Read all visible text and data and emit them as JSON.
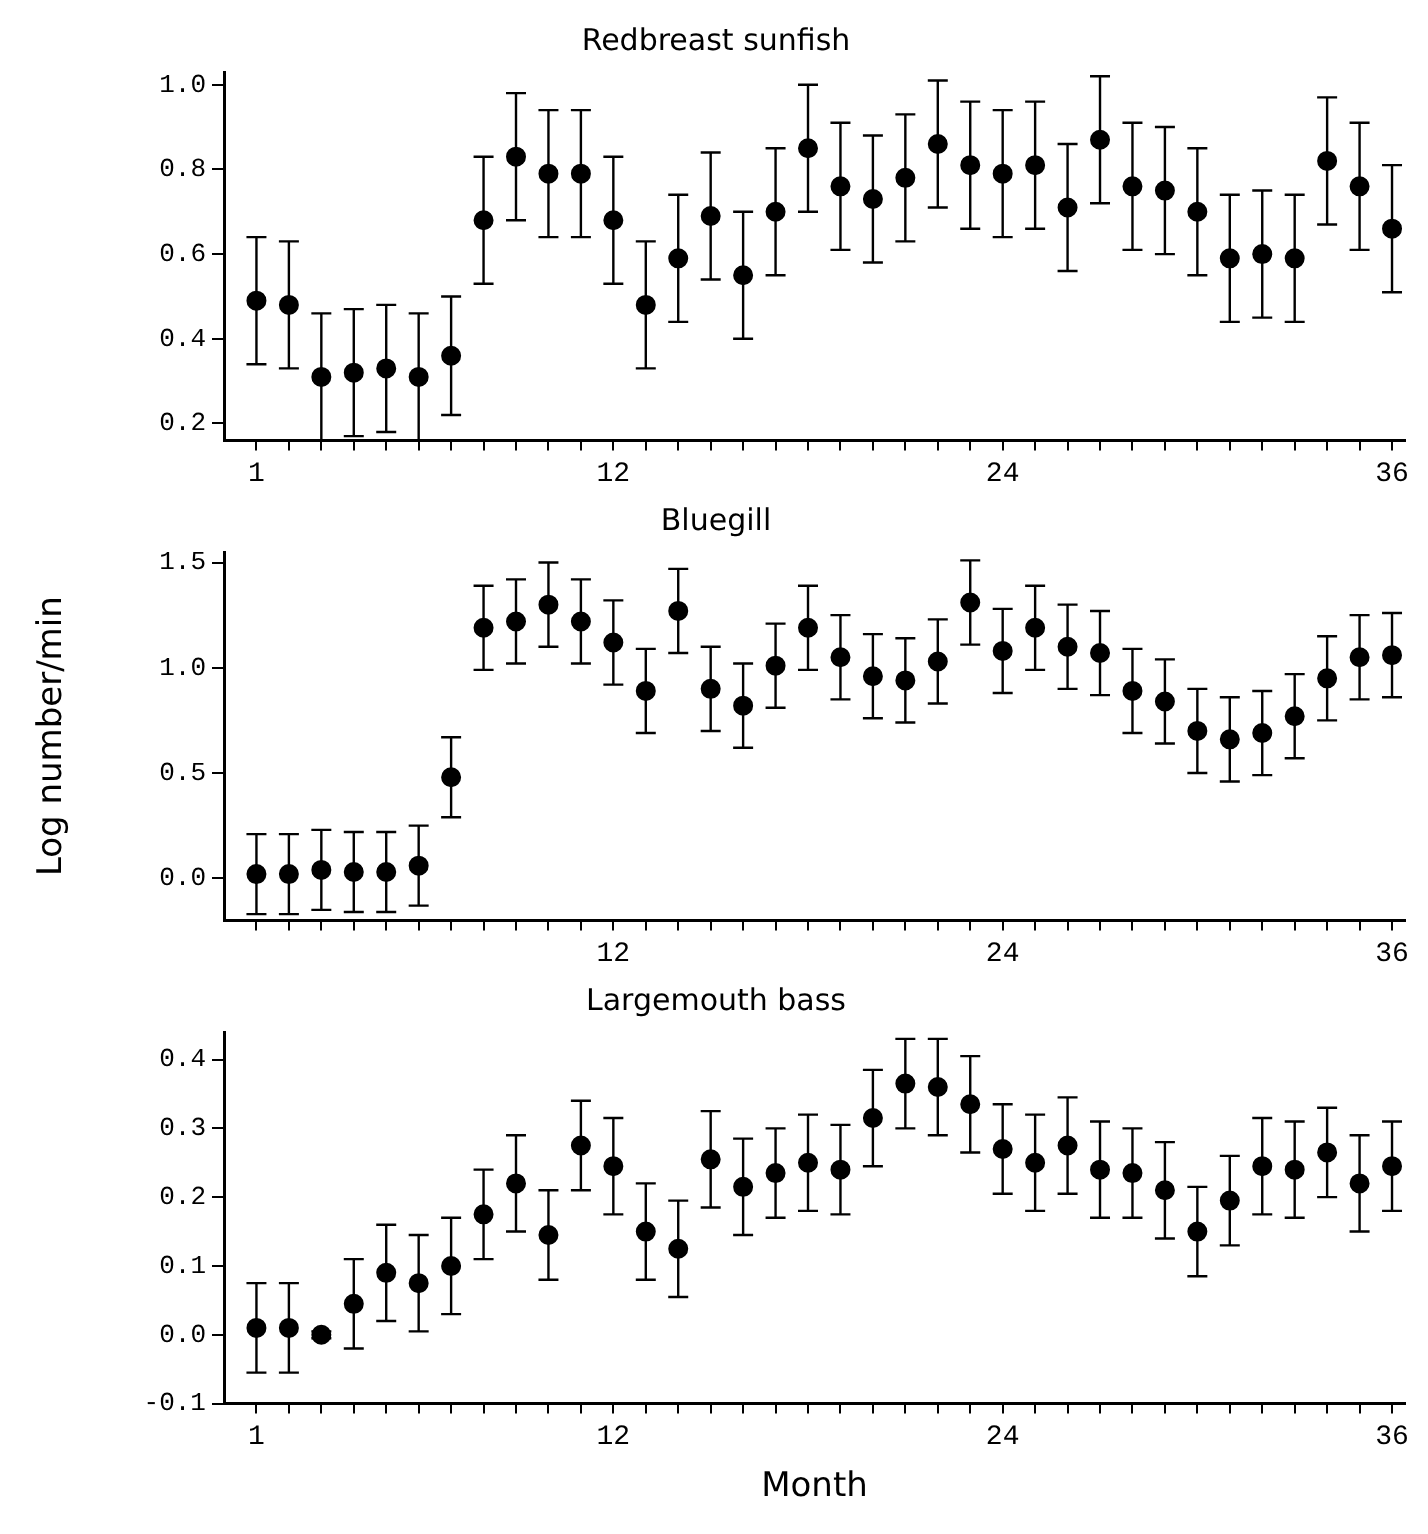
{
  "chart_data": [
    {
      "type": "scatter",
      "title": "Redbreast sunfish",
      "marker": "circle",
      "grid": false,
      "xlim": [
        0,
        36.4
      ],
      "ylim": [
        0.16,
        1.03
      ],
      "yticks": [
        {
          "value": 0.2,
          "label": "0.2"
        },
        {
          "value": 0.4,
          "label": "0.4"
        },
        {
          "value": 0.6,
          "label": "0.6"
        },
        {
          "value": 0.8,
          "label": "0.8"
        },
        {
          "value": 1,
          "label": "1.0"
        }
      ],
      "xticks": [
        1,
        {
          "value": 2,
          "label": null
        },
        {
          "value": 3,
          "label": null
        },
        {
          "value": 4,
          "label": null
        },
        {
          "value": 5,
          "label": null
        },
        {
          "value": 6,
          "label": null
        },
        {
          "value": 7,
          "label": null
        },
        {
          "value": 8,
          "label": null
        },
        {
          "value": 9,
          "label": null
        },
        {
          "value": 10,
          "label": null
        },
        {
          "value": 11,
          "label": null
        },
        12,
        {
          "value": 13,
          "label": null
        },
        {
          "value": 14,
          "label": null
        },
        {
          "value": 15,
          "label": null
        },
        {
          "value": 16,
          "label": null
        },
        {
          "value": 17,
          "label": null
        },
        {
          "value": 18,
          "label": null
        },
        {
          "value": 19,
          "label": null
        },
        {
          "value": 20,
          "label": null
        },
        {
          "value": 21,
          "label": null
        },
        {
          "value": 22,
          "label": null
        },
        {
          "value": 23,
          "label": null
        },
        24,
        {
          "value": 25,
          "label": null
        },
        {
          "value": 26,
          "label": null
        },
        {
          "value": 27,
          "label": null
        },
        {
          "value": 28,
          "label": null
        },
        {
          "value": 29,
          "label": null
        },
        {
          "value": 30,
          "label": null
        },
        {
          "value": 31,
          "label": null
        },
        {
          "value": 32,
          "label": null
        },
        {
          "value": 33,
          "label": null
        },
        {
          "value": 34,
          "label": null
        },
        {
          "value": 35,
          "label": null
        },
        36
      ],
      "x": [
        1,
        2,
        3,
        4,
        5,
        6,
        7,
        8,
        9,
        10,
        11,
        12,
        13,
        14,
        15,
        16,
        17,
        18,
        19,
        20,
        21,
        22,
        23,
        24,
        25,
        26,
        27,
        28,
        29,
        30,
        31,
        32,
        33,
        34,
        35,
        36
      ],
      "series": [
        {
          "color": "#000000",
          "values": [
            0.49,
            0.48,
            0.31,
            0.32,
            0.33,
            0.31,
            0.36,
            0.68,
            0.83,
            0.79,
            0.79,
            0.68,
            0.48,
            0.59,
            0.69,
            0.55,
            0.7,
            0.85,
            0.76,
            0.73,
            0.78,
            0.86,
            0.81,
            0.79,
            0.81,
            0.71,
            0.87,
            0.76,
            0.75,
            0.7,
            0.59,
            0.6,
            0.59,
            0.82,
            0.76,
            0.66
          ],
          "errors": [
            0.15,
            0.15,
            0.15,
            0.15,
            0.15,
            0.15,
            0.14,
            0.15,
            0.15,
            0.15,
            0.15,
            0.15,
            0.15,
            0.15,
            0.15,
            0.15,
            0.15,
            0.15,
            0.15,
            0.15,
            0.15,
            0.15,
            0.15,
            0.15,
            0.15,
            0.15,
            0.15,
            0.15,
            0.15,
            0.15,
            0.15,
            0.15,
            0.15,
            0.15,
            0.15,
            0.15
          ]
        }
      ]
    },
    {
      "type": "scatter",
      "title": "Bluegill",
      "ylabel": "Log number/min",
      "marker": "circle",
      "grid": false,
      "xlim": [
        0,
        36.4
      ],
      "ylim": [
        -0.2,
        1.55
      ],
      "yticks": [
        {
          "value": 0,
          "label": "0.0"
        },
        {
          "value": 0.5,
          "label": "0.5"
        },
        {
          "value": 1,
          "label": "1.0"
        },
        {
          "value": 1.5,
          "label": "1.5"
        }
      ],
      "xticks": [
        {
          "value": 1,
          "label": null
        },
        {
          "value": 2,
          "label": null
        },
        {
          "value": 3,
          "label": null
        },
        {
          "value": 4,
          "label": null
        },
        {
          "value": 5,
          "label": null
        },
        {
          "value": 6,
          "label": null
        },
        {
          "value": 7,
          "label": null
        },
        {
          "value": 8,
          "label": null
        },
        {
          "value": 9,
          "label": null
        },
        {
          "value": 10,
          "label": null
        },
        {
          "value": 11,
          "label": null
        },
        12,
        {
          "value": 13,
          "label": null
        },
        {
          "value": 14,
          "label": null
        },
        {
          "value": 15,
          "label": null
        },
        {
          "value": 16,
          "label": null
        },
        {
          "value": 17,
          "label": null
        },
        {
          "value": 18,
          "label": null
        },
        {
          "value": 19,
          "label": null
        },
        {
          "value": 20,
          "label": null
        },
        {
          "value": 21,
          "label": null
        },
        {
          "value": 22,
          "label": null
        },
        {
          "value": 23,
          "label": null
        },
        24,
        {
          "value": 25,
          "label": null
        },
        {
          "value": 26,
          "label": null
        },
        {
          "value": 27,
          "label": null
        },
        {
          "value": 28,
          "label": null
        },
        {
          "value": 29,
          "label": null
        },
        {
          "value": 30,
          "label": null
        },
        {
          "value": 31,
          "label": null
        },
        {
          "value": 32,
          "label": null
        },
        {
          "value": 33,
          "label": null
        },
        {
          "value": 34,
          "label": null
        },
        {
          "value": 35,
          "label": null
        },
        36
      ],
      "x": [
        1,
        2,
        3,
        4,
        5,
        6,
        7,
        8,
        9,
        10,
        11,
        12,
        13,
        14,
        15,
        16,
        17,
        18,
        19,
        20,
        21,
        22,
        23,
        24,
        25,
        26,
        27,
        28,
        29,
        30,
        31,
        32,
        33,
        34,
        35,
        36
      ],
      "series": [
        {
          "color": "#000000",
          "values": [
            0.02,
            0.02,
            0.04,
            0.03,
            0.03,
            0.06,
            0.48,
            1.19,
            1.22,
            1.3,
            1.22,
            1.12,
            0.89,
            1.27,
            0.9,
            0.82,
            1.01,
            1.19,
            1.05,
            0.96,
            0.94,
            1.03,
            1.31,
            1.08,
            1.19,
            1.1,
            1.07,
            0.89,
            0.84,
            0.7,
            0.66,
            0.69,
            0.77,
            0.95,
            1.05,
            1.06
          ],
          "errors": [
            0.19,
            0.19,
            0.19,
            0.19,
            0.19,
            0.19,
            0.19,
            0.2,
            0.2,
            0.2,
            0.2,
            0.2,
            0.2,
            0.2,
            0.2,
            0.2,
            0.2,
            0.2,
            0.2,
            0.2,
            0.2,
            0.2,
            0.2,
            0.2,
            0.2,
            0.2,
            0.2,
            0.2,
            0.2,
            0.2,
            0.2,
            0.2,
            0.2,
            0.2,
            0.2,
            0.2
          ]
        }
      ]
    },
    {
      "type": "scatter",
      "title": "Largemouth bass",
      "xlabel": "Month",
      "marker": "circle",
      "grid": false,
      "xlim": [
        0,
        36.4
      ],
      "ylim": [
        -0.1,
        0.44
      ],
      "yticks": [
        {
          "value": -0.1,
          "label": "-0.1"
        },
        {
          "value": 0,
          "label": "0.0"
        },
        {
          "value": 0.1,
          "label": "0.1"
        },
        {
          "value": 0.2,
          "label": "0.2"
        },
        {
          "value": 0.3,
          "label": "0.3"
        },
        {
          "value": 0.4,
          "label": "0.4"
        }
      ],
      "xticks": [
        1,
        {
          "value": 2,
          "label": null
        },
        {
          "value": 3,
          "label": null
        },
        {
          "value": 4,
          "label": null
        },
        {
          "value": 5,
          "label": null
        },
        {
          "value": 6,
          "label": null
        },
        {
          "value": 7,
          "label": null
        },
        {
          "value": 8,
          "label": null
        },
        {
          "value": 9,
          "label": null
        },
        {
          "value": 10,
          "label": null
        },
        {
          "value": 11,
          "label": null
        },
        12,
        {
          "value": 13,
          "label": null
        },
        {
          "value": 14,
          "label": null
        },
        {
          "value": 15,
          "label": null
        },
        {
          "value": 16,
          "label": null
        },
        {
          "value": 17,
          "label": null
        },
        {
          "value": 18,
          "label": null
        },
        {
          "value": 19,
          "label": null
        },
        {
          "value": 20,
          "label": null
        },
        {
          "value": 21,
          "label": null
        },
        {
          "value": 22,
          "label": null
        },
        {
          "value": 23,
          "label": null
        },
        24,
        {
          "value": 25,
          "label": null
        },
        {
          "value": 26,
          "label": null
        },
        {
          "value": 27,
          "label": null
        },
        {
          "value": 28,
          "label": null
        },
        {
          "value": 29,
          "label": null
        },
        {
          "value": 30,
          "label": null
        },
        {
          "value": 31,
          "label": null
        },
        {
          "value": 32,
          "label": null
        },
        {
          "value": 33,
          "label": null
        },
        {
          "value": 34,
          "label": null
        },
        {
          "value": 35,
          "label": null
        },
        36
      ],
      "x": [
        1,
        2,
        3,
        4,
        5,
        6,
        7,
        8,
        9,
        10,
        11,
        12,
        13,
        14,
        15,
        16,
        17,
        18,
        19,
        20,
        21,
        22,
        23,
        24,
        25,
        26,
        27,
        28,
        29,
        30,
        31,
        32,
        33,
        34,
        35,
        36
      ],
      "series": [
        {
          "color": "#000000",
          "values": [
            0.01,
            0.01,
            0,
            0.045,
            0.09,
            0.075,
            0.1,
            0.175,
            0.22,
            0.145,
            0.275,
            0.245,
            0.15,
            0.125,
            0.255,
            0.215,
            0.235,
            0.25,
            0.24,
            0.315,
            0.365,
            0.36,
            0.335,
            0.27,
            0.25,
            0.275,
            0.24,
            0.235,
            0.21,
            0.15,
            0.195,
            0.245,
            0.24,
            0.265,
            0.22,
            0.245
          ],
          "errors": [
            0.065,
            0.065,
            0.005,
            0.065,
            0.07,
            0.07,
            0.07,
            0.065,
            0.07,
            0.065,
            0.065,
            0.07,
            0.07,
            0.07,
            0.07,
            0.07,
            0.065,
            0.07,
            0.065,
            0.07,
            0.065,
            0.07,
            0.07,
            0.065,
            0.07,
            0.07,
            0.07,
            0.065,
            0.07,
            0.065,
            0.065,
            0.07,
            0.07,
            0.065,
            0.07,
            0.065
          ]
        }
      ]
    }
  ]
}
